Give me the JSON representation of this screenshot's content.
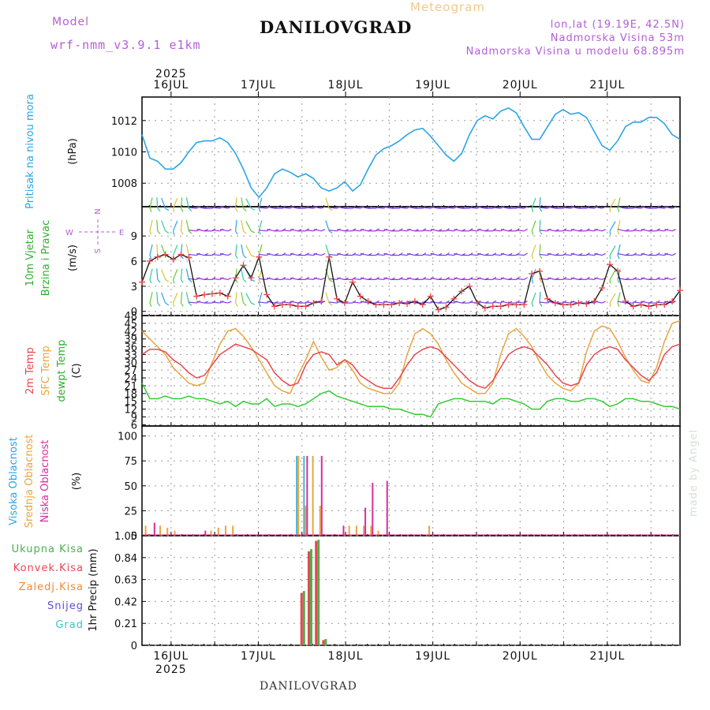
{
  "header": {
    "model_label": "Model",
    "model_name": "wrf-nmm_v3.9.1 e1km",
    "meteogram": "Meteogram",
    "station": "DANILOVGRAD",
    "lonlat": "lon,lat (19.19E, 42.5N)",
    "altitude": "Nadmorska Visina 53m",
    "model_altitude": "Nadmorska Visina u modelu 68.895m"
  },
  "footer": {
    "station": "DANILOVGRAD"
  },
  "watermark": "made by Angel",
  "colors": {
    "pressure": "#2aa5e6",
    "temp2m": "#e8474f",
    "sfc_temp": "#e6a640",
    "dewpt": "#33cc33",
    "cloud_high": "#4ab3c9",
    "cloud_mid": "#e6a640",
    "cloud_low": "#d82d9c",
    "precip_total": "#4caf50",
    "precip_conv": "#e8474f",
    "precip_strat": "#f08a3c",
    "snow": "#5a4ed8",
    "hail": "#38c6c6",
    "wind_barb": "#9b30d9",
    "label_purple": "#b35ed8"
  },
  "chart_data": [
    {
      "type": "line",
      "name": "pressure",
      "ylabel_lines": [
        "Pritisak na nivou mora",
        "(hPa)"
      ],
      "xlabels_top": [
        "16JUL",
        "17JUL",
        "18JUL",
        "19JUL",
        "20JUL",
        "21JUL"
      ],
      "year_top": "2025",
      "x_range_hours": [
        -8,
        140
      ],
      "ylim": [
        1006.5,
        1013.5
      ],
      "yticks": [
        1008,
        1010,
        1012
      ],
      "series": [
        {
          "values": [
            1011.1,
            1009.6,
            1009.4,
            1008.9,
            1008.9,
            1009.3,
            1010.0,
            1010.6,
            1010.7,
            1010.7,
            1010.9,
            1010.6,
            1009.9,
            1008.9,
            1007.7,
            1007.1,
            1007.7,
            1008.6,
            1008.9,
            1008.7,
            1008.4,
            1008.6,
            1008.3,
            1007.7,
            1007.5,
            1007.7,
            1008.1,
            1007.5,
            1007.9,
            1008.9,
            1009.8,
            1010.2,
            1010.4,
            1010.7,
            1011.1,
            1011.4,
            1011.5,
            1011.0,
            1010.4,
            1009.8,
            1009.4,
            1009.9,
            1011.1,
            1012.0,
            1012.3,
            1012.1,
            1012.6,
            1012.8,
            1012.5,
            1011.6,
            1010.8,
            1010.8,
            1011.6,
            1012.4,
            1012.7,
            1012.4,
            1012.5,
            1012.2,
            1011.3,
            1010.4,
            1010.1,
            1010.7,
            1011.6,
            1011.9,
            1011.9,
            1012.2,
            1012.2,
            1011.8,
            1011.1,
            1010.8
          ]
        }
      ]
    },
    {
      "type": "line",
      "name": "wind",
      "ylabel_lines": [
        "10m Vjetar",
        "Brzina i Pravac",
        "(m/s)"
      ],
      "compass": {
        "n": "N",
        "s": "S",
        "e": "E",
        "w": "W"
      },
      "ylim": [
        -0.5,
        12.5
      ],
      "yticks": [
        0,
        3,
        6,
        9
      ],
      "barb_levels": [
        1,
        3.8,
        6.7,
        9.6,
        12.3
      ],
      "series": [
        {
          "name": "speed",
          "values": [
            3.5,
            6.0,
            6.5,
            6.8,
            6.2,
            6.8,
            6.4,
            1.8,
            2.0,
            2.1,
            2.2,
            1.8,
            4.0,
            5.5,
            4.0,
            6.5,
            2.0,
            0.6,
            0.8,
            0.8,
            0.6,
            0.6,
            1.0,
            1.2,
            6.5,
            1.5,
            1.0,
            3.5,
            1.8,
            1.2,
            0.8,
            0.8,
            0.8,
            1.0,
            0.9,
            1.2,
            0.8,
            1.8,
            0.2,
            0.5,
            1.5,
            2.4,
            3.0,
            1.0,
            0.4,
            0.6,
            0.6,
            0.8,
            0.8,
            0.8,
            4.5,
            4.8,
            1.5,
            1.0,
            0.8,
            0.8,
            1.0,
            0.9,
            1.2,
            2.8,
            5.6,
            4.8,
            1.2,
            0.6,
            0.8,
            0.6,
            0.8,
            0.8,
            1.2,
            2.5
          ]
        }
      ]
    },
    {
      "type": "line",
      "name": "temperature",
      "ylabel_lines": [
        "2m Temp",
        "SFC Temp",
        "dewpt Temp",
        "(C)"
      ],
      "ylim": [
        5.5,
        48
      ],
      "yticks": [
        6,
        9,
        12,
        15,
        18,
        21,
        24,
        27,
        30,
        33,
        36,
        39,
        42,
        45,
        48
      ],
      "series": [
        {
          "name": "2m Temp",
          "values": [
            33,
            35,
            35,
            34,
            31,
            29,
            26,
            24,
            25,
            29,
            33,
            35,
            37,
            36,
            35,
            33,
            31,
            26,
            23,
            21,
            22,
            29,
            33,
            34,
            33,
            29,
            31,
            29,
            25,
            23,
            21,
            20,
            20,
            24,
            29,
            33,
            35,
            36,
            35,
            32,
            29,
            26,
            23,
            21,
            20,
            23,
            28,
            33,
            35,
            36,
            35,
            32,
            29,
            25,
            22,
            21,
            22,
            29,
            33,
            35,
            36,
            35,
            31,
            28,
            25,
            23,
            26,
            33,
            36,
            37
          ]
        },
        {
          "name": "SFC Temp",
          "values": [
            42,
            39,
            36,
            33,
            28,
            25,
            22,
            21,
            22,
            30,
            37,
            42,
            43,
            40,
            36,
            31,
            26,
            21,
            19,
            18,
            25,
            31,
            38,
            32,
            27,
            28,
            31,
            27,
            22,
            20,
            19,
            18,
            18,
            22,
            33,
            41,
            43,
            41,
            37,
            31,
            26,
            22,
            20,
            18,
            18,
            22,
            33,
            41,
            43,
            40,
            36,
            30,
            25,
            22,
            20,
            19,
            22,
            34,
            42,
            44,
            43,
            38,
            32,
            27,
            23,
            22,
            28,
            38,
            45,
            46
          ]
        },
        {
          "name": "dewpt Temp",
          "values": [
            22,
            16,
            16,
            17,
            16,
            16,
            17,
            16,
            16,
            15,
            14,
            15,
            13,
            15,
            14,
            14,
            16,
            13,
            14,
            14,
            13,
            14,
            16,
            18,
            19,
            17,
            16,
            15,
            14,
            13,
            13,
            13,
            12,
            12,
            11,
            10,
            10,
            9,
            14,
            15,
            16,
            16,
            15,
            15,
            15,
            14,
            16,
            16,
            15,
            14,
            12,
            12,
            15,
            16,
            16,
            15,
            15,
            16,
            16,
            15,
            13,
            14,
            16,
            16,
            15,
            15,
            14,
            13,
            13,
            12
          ]
        }
      ]
    },
    {
      "type": "bar",
      "name": "clouds",
      "ylabel_lines": [
        "Visoka Oblacnost",
        "Srednja Oblacnost",
        "Niska Oblacnost",
        "(%)"
      ],
      "ylim": [
        0,
        110
      ],
      "yticks": [
        0,
        25,
        50,
        75,
        100
      ],
      "series": [
        {
          "name": "Visoka Oblacnost",
          "x_hours": [
            35,
            37,
            39,
            41
          ],
          "values": [
            80,
            80,
            0,
            0
          ]
        },
        {
          "name": "Srednja Oblacnost",
          "x_hours": [
            -7,
            -3,
            -1,
            1,
            11,
            13,
            15,
            17,
            35,
            37,
            39,
            41,
            49,
            51,
            53,
            55,
            57,
            71
          ],
          "values": [
            10,
            10,
            8,
            5,
            5,
            8,
            10,
            10,
            80,
            30,
            80,
            30,
            10,
            10,
            10,
            10,
            5,
            10
          ]
        },
        {
          "name": "Niska Oblacnost",
          "x_hours": [
            -5,
            9,
            37,
            41,
            47,
            53,
            55,
            59
          ],
          "values": [
            13,
            5,
            80,
            80,
            10,
            28,
            53,
            55
          ]
        }
      ]
    },
    {
      "type": "bar",
      "name": "precipitation",
      "ylabel_lines": [
        "1hr Precip (mm)"
      ],
      "legend": [
        "Ukupna Kisa",
        "Konvek.Kisa",
        "Zaledj.Kisa",
        "Snijeg",
        "Grad"
      ],
      "xlabels_bottom": [
        "16JUL",
        "17JUL",
        "18JUL",
        "19JUL",
        "20JUL",
        "21JUL"
      ],
      "year_bottom": "2025",
      "ylim": [
        0,
        1.05
      ],
      "yticks": [
        0,
        0.21,
        0.42,
        0.63,
        0.84,
        1.05
      ],
      "series": [
        {
          "name": "Ukupna Kisa",
          "x_hours": [
            36,
            38,
            40,
            42
          ],
          "values": [
            0.52,
            0.92,
            1.01,
            0.06
          ]
        },
        {
          "name": "Konvek.Kisa",
          "x_hours": [
            36,
            38,
            40,
            42
          ],
          "values": [
            0.5,
            0.9,
            1.0,
            0.05
          ]
        }
      ]
    }
  ]
}
